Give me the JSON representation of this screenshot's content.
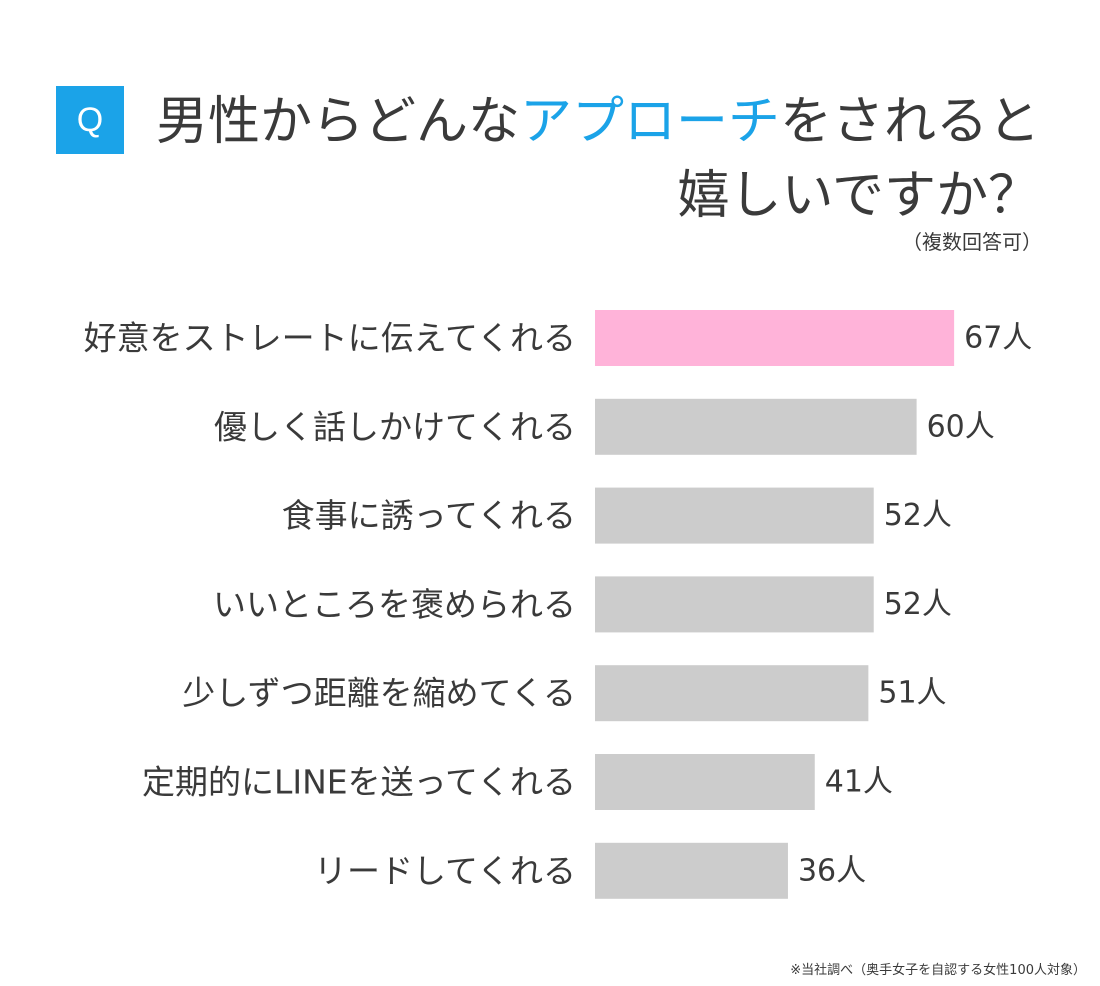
{
  "header": {
    "badge": "Q",
    "title_part1": "男性からどんな",
    "title_accent": "アプローチ",
    "title_part2": "をされると",
    "title_line2": "嬉しいですか？",
    "note": "（複数回答可）"
  },
  "colors": {
    "accent": "#1ba3e8",
    "highlight_bar": "#ffb3d9",
    "default_bar": "#cccccc",
    "text": "#3a3a3a"
  },
  "chart_data": {
    "type": "bar",
    "orientation": "horizontal",
    "unit_suffix": "人",
    "categories": [
      "好意をストレートに伝えてくれる",
      "優しく話しかけてくれる",
      "食事に誘ってくれる",
      "いいところを褒められる",
      "少しずつ距離を縮めてくる",
      "定期的にLINEを送ってくれる",
      "リードしてくれる"
    ],
    "values": [
      67,
      60,
      52,
      52,
      51,
      41,
      36
    ],
    "value_labels": [
      "67人",
      "60人",
      "52人",
      "52人",
      "51人",
      "41人",
      "36人"
    ],
    "highlight_index": 0,
    "grid": false,
    "axes_visible": false
  },
  "footnote": "※当社調べ（奥手女子を自認する女性100人対象）"
}
